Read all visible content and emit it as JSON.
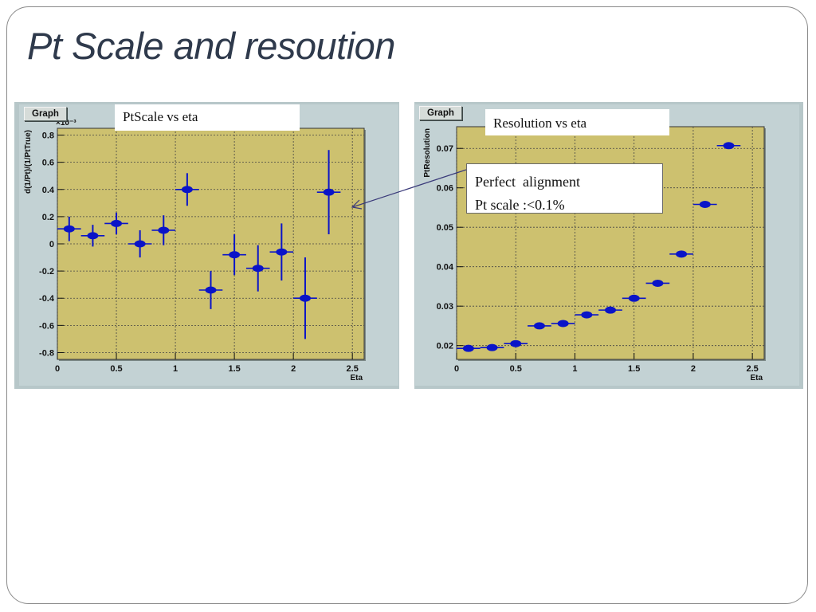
{
  "slide": {
    "title": "Pt Scale and resoution",
    "note_lines": [
      "Perfect  alignment",
      "Pt scale :<0.1%"
    ]
  },
  "chart_data": [
    {
      "type": "scatter",
      "panel_button": "Graph",
      "panel_label": "PtScale vs eta",
      "ylabel": "d(1/Pt)/(1/PtTrue)",
      "xlabel": "Eta",
      "y_multiplier": "×10⁻³",
      "xlim": [
        0,
        2.6
      ],
      "ylim": [
        -0.85,
        0.85
      ],
      "xticks": [
        0,
        0.5,
        1,
        1.5,
        2,
        2.5
      ],
      "xtick_labels": [
        "0",
        "0.5",
        "1",
        "1.5",
        "2",
        "2.5"
      ],
      "yticks": [
        -0.8,
        -0.6,
        -0.4,
        -0.2,
        0,
        0.2,
        0.4,
        0.6,
        0.8
      ],
      "ytick_labels": [
        "-0.8",
        "-0.6",
        "-0.4",
        "-0.2",
        "0",
        "0.2",
        "0.4",
        "0.6",
        "0.8"
      ],
      "grid": true,
      "plot_background": "#cdc16f",
      "marker_color": "#0a14c8",
      "points": [
        {
          "x": 0.1,
          "y": 0.11,
          "xerr": 0.1,
          "yerr": 0.09
        },
        {
          "x": 0.3,
          "y": 0.06,
          "xerr": 0.1,
          "yerr": 0.08
        },
        {
          "x": 0.5,
          "y": 0.15,
          "xerr": 0.1,
          "yerr": 0.08
        },
        {
          "x": 0.7,
          "y": 0.0,
          "xerr": 0.1,
          "yerr": 0.1
        },
        {
          "x": 0.9,
          "y": 0.1,
          "xerr": 0.1,
          "yerr": 0.11
        },
        {
          "x": 1.1,
          "y": 0.4,
          "xerr": 0.1,
          "yerr": 0.12
        },
        {
          "x": 1.3,
          "y": -0.34,
          "xerr": 0.1,
          "yerr": 0.14
        },
        {
          "x": 1.5,
          "y": -0.08,
          "xerr": 0.1,
          "yerr": 0.15
        },
        {
          "x": 1.7,
          "y": -0.18,
          "xerr": 0.1,
          "yerr": 0.17
        },
        {
          "x": 1.9,
          "y": -0.06,
          "xerr": 0.1,
          "yerr": 0.21
        },
        {
          "x": 2.1,
          "y": -0.4,
          "xerr": 0.1,
          "yerr": 0.3
        },
        {
          "x": 2.3,
          "y": 0.38,
          "xerr": 0.1,
          "yerr": 0.31
        }
      ]
    },
    {
      "type": "scatter",
      "panel_button": "Graph",
      "panel_label": "Resolution vs eta",
      "ylabel": "PtResolution",
      "xlabel": "Eta",
      "xlim": [
        0,
        2.6
      ],
      "ylim": [
        0.0165,
        0.0755
      ],
      "xticks": [
        0,
        0.5,
        1,
        1.5,
        2,
        2.5
      ],
      "xtick_labels": [
        "0",
        "0.5",
        "1",
        "1.5",
        "2",
        "2.5"
      ],
      "yticks": [
        0.02,
        0.03,
        0.04,
        0.05,
        0.06,
        0.07
      ],
      "ytick_labels": [
        "0.02",
        "0.03",
        "0.04",
        "0.05",
        "0.06",
        "0.07"
      ],
      "grid": true,
      "plot_background": "#cdc16f",
      "marker_color": "#0a14c8",
      "points": [
        {
          "x": 0.1,
          "y": 0.0193,
          "xerr": 0.1,
          "yerr": 0
        },
        {
          "x": 0.3,
          "y": 0.0195,
          "xerr": 0.1,
          "yerr": 0
        },
        {
          "x": 0.5,
          "y": 0.0205,
          "xerr": 0.1,
          "yerr": 0
        },
        {
          "x": 0.7,
          "y": 0.025,
          "xerr": 0.1,
          "yerr": 0
        },
        {
          "x": 0.9,
          "y": 0.0256,
          "xerr": 0.1,
          "yerr": 0
        },
        {
          "x": 1.1,
          "y": 0.0278,
          "xerr": 0.1,
          "yerr": 0
        },
        {
          "x": 1.3,
          "y": 0.029,
          "xerr": 0.1,
          "yerr": 0
        },
        {
          "x": 1.5,
          "y": 0.032,
          "xerr": 0.1,
          "yerr": 0
        },
        {
          "x": 1.7,
          "y": 0.0358,
          "xerr": 0.1,
          "yerr": 0
        },
        {
          "x": 1.9,
          "y": 0.0432,
          "xerr": 0.1,
          "yerr": 0
        },
        {
          "x": 2.1,
          "y": 0.0558,
          "xerr": 0.1,
          "yerr": 0
        },
        {
          "x": 2.3,
          "y": 0.0707,
          "xerr": 0.1,
          "yerr": 0
        }
      ]
    }
  ]
}
